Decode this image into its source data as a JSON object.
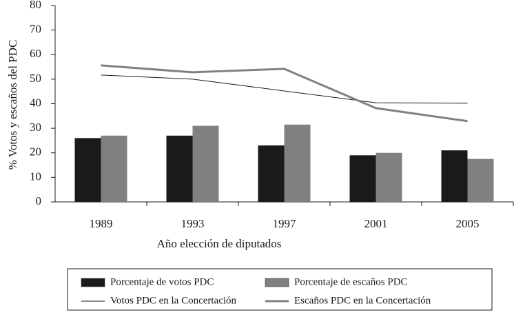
{
  "chart_data": {
    "type": "bar",
    "xlabel": "Año elección de diputados",
    "ylabel": "% Votos y escaños del PDC",
    "categories": [
      "1989",
      "1993",
      "1997",
      "2001",
      "2005"
    ],
    "series": [
      {
        "name": "Porcentaje de votos PDC",
        "type": "bar",
        "color": "#1a1a1a",
        "values": [
          26,
          27,
          23,
          19,
          21
        ]
      },
      {
        "name": "Porcentaje de escaños PDC",
        "type": "bar",
        "color": "#808080",
        "values": [
          27,
          31,
          31.5,
          20,
          17.5
        ]
      },
      {
        "name": "Votos PDC en la Concertación",
        "type": "line",
        "color": "#1a1a1a",
        "width": 1,
        "values": [
          51.7,
          50,
          45.2,
          40.4,
          40.2
        ]
      },
      {
        "name": "Escaños PDC en la Concertación",
        "type": "line",
        "color": "#808080",
        "width": 3,
        "values": [
          55.6,
          52.8,
          54.2,
          38.2,
          32.9
        ]
      }
    ],
    "ylim": [
      0,
      80
    ],
    "yticks": [
      0,
      10,
      20,
      30,
      40,
      50,
      60,
      70,
      80
    ],
    "grid": false,
    "legend": "bottom"
  }
}
